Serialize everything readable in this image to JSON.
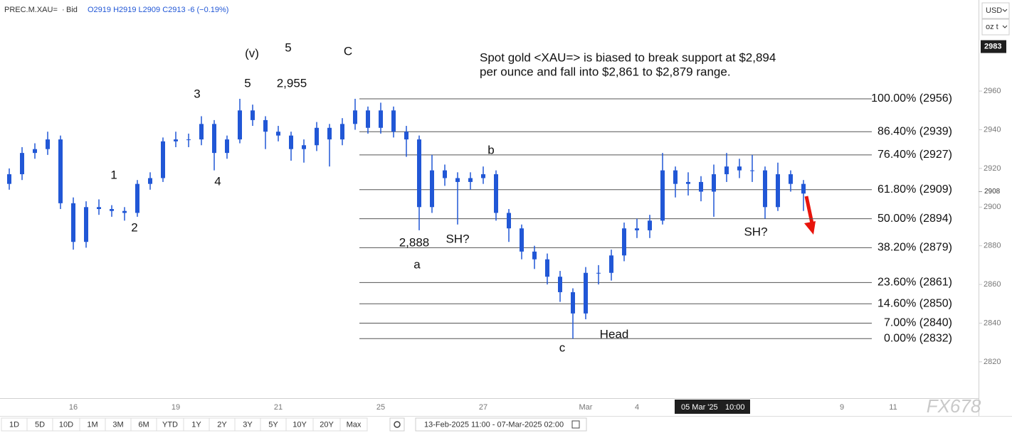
{
  "chart_data": {
    "type": "ohlc",
    "header": {
      "symbol": "PREC.M.XAU=",
      "separator": "·",
      "source": "Bid",
      "quote": "O2919 H2919 L2909 C2913 -6 (−0.19%)"
    },
    "note": [
      "Spot gold <XAU=> is biased to break support at $2,894",
      "per ounce and fall into $2,861 to $2,879 range."
    ],
    "color": "#2157d6",
    "categories": [
      null,
      null,
      null,
      null,
      null,
      "16",
      null,
      null,
      null,
      null,
      null,
      null,
      null,
      "19",
      null,
      null,
      null,
      null,
      null,
      null,
      null,
      "21",
      null,
      null,
      null,
      null,
      null,
      null,
      null,
      "25",
      null,
      null,
      null,
      null,
      null,
      null,
      null,
      "27",
      null,
      null,
      null,
      null,
      null,
      null,
      null,
      "Mar",
      null,
      null,
      null,
      "4",
      null,
      null,
      null,
      null,
      null,
      null,
      null,
      null,
      null,
      null,
      null,
      null,
      null,
      null,
      null,
      "9",
      null,
      null,
      null,
      "11",
      null,
      null,
      null,
      null,
      null,
      null
    ],
    "open": [
      2912,
      2917,
      2928,
      2930,
      2935,
      2902,
      2882,
      2900,
      2899,
      2898,
      2897,
      2912,
      2915,
      2934,
      2935,
      2935,
      2943,
      2928,
      2935,
      2950,
      2945,
      2939,
      2937,
      2930,
      2932,
      2941,
      2935,
      2943,
      2950,
      2941,
      2950,
      2939,
      2935,
      2900,
      2919,
      2915,
      2913,
      2915,
      2917,
      2897,
      2889,
      2877,
      2873,
      2864,
      2856,
      2845,
      2866,
      2866,
      2875,
      2889,
      2888,
      2893,
      2919,
      2912,
      2913,
      2908,
      2917,
      2921,
      2919,
      2919,
      2900,
      2917,
      2912,
      null,
      null,
      null,
      null,
      null,
      null,
      null,
      null,
      null,
      null,
      null,
      null,
      null
    ],
    "high": [
      2920,
      2931,
      2933,
      2939,
      2937,
      2905,
      2903,
      2904,
      2901,
      2900,
      2914,
      2918,
      2936,
      2939,
      2938,
      2947,
      2945,
      2937,
      2956,
      2953,
      2947,
      2942,
      2939,
      2935,
      2944,
      2943,
      2946,
      2956,
      2952,
      2954,
      2952,
      2942,
      2937,
      2927,
      2922,
      2918,
      2918,
      2921,
      2919,
      2899,
      2891,
      2880,
      2876,
      2867,
      2858,
      2869,
      2870,
      2878,
      2892,
      2894,
      2896,
      2928,
      2921,
      2918,
      2916,
      2922,
      2928,
      2925,
      2927,
      2921,
      2923,
      2919,
      2914,
      null,
      null,
      null,
      null,
      null,
      null,
      null,
      null,
      null,
      null,
      null,
      null,
      null
    ],
    "low": [
      2909,
      2914,
      2925,
      2927,
      2899,
      2878,
      2879,
      2896,
      2895,
      2893,
      2895,
      2909,
      2913,
      2931,
      2931,
      2932,
      2919,
      2925,
      2933,
      2942,
      2930,
      2934,
      2924,
      2923,
      2929,
      2921,
      2932,
      2940,
      2938,
      2938,
      2936,
      2926,
      2888,
      2897,
      2911,
      2891,
      2909,
      2912,
      2893,
      2882,
      2873,
      2868,
      2860,
      2851,
      2832,
      2842,
      2860,
      2862,
      2872,
      2884,
      2884,
      2891,
      2905,
      2906,
      2903,
      2895,
      2913,
      2915,
      2913,
      2894,
      2898,
      2908,
      2898,
      null,
      null,
      null,
      null,
      null,
      null,
      null,
      null,
      null,
      null,
      null,
      null,
      null
    ],
    "close": [
      2917,
      2928,
      2930,
      2935,
      2902,
      2882,
      2900,
      2899,
      2898,
      2897,
      2912,
      2915,
      2934,
      2935,
      2935,
      2943,
      2928,
      2935,
      2950,
      2945,
      2939,
      2937,
      2930,
      2932,
      2941,
      2935,
      2943,
      2950,
      2941,
      2950,
      2939,
      2935,
      2900,
      2919,
      2915,
      2913,
      2915,
      2917,
      2897,
      2889,
      2877,
      2873,
      2864,
      2856,
      2845,
      2866,
      2866,
      2875,
      2889,
      2888,
      2893,
      2919,
      2912,
      2913,
      2908,
      2917,
      2921,
      2919,
      2919,
      2900,
      2917,
      2912,
      2907,
      null,
      null,
      null,
      null,
      null,
      null,
      null,
      null,
      null,
      null,
      null,
      null,
      null
    ],
    "ylim": [
      2801.2,
      3007.1
    ],
    "yticks": [
      2820,
      2840,
      2860,
      2880,
      2900,
      2920,
      2940,
      2960
    ],
    "price_markers": [
      2983,
      2908
    ],
    "levels": [
      {
        "label": "100.00% (2956)",
        "value": 2956
      },
      {
        "label": "86.40% (2939)",
        "value": 2939
      },
      {
        "label": "76.40% (2927)",
        "value": 2927
      },
      {
        "label": "61.80% (2909)",
        "value": 2909
      },
      {
        "label": "50.00% (2894)",
        "value": 2894
      },
      {
        "label": "38.20% (2879)",
        "value": 2879
      },
      {
        "label": "23.60% (2861)",
        "value": 2861
      },
      {
        "label": "14.60% (2850)",
        "value": 2850
      },
      {
        "label": "7.00% (2840)",
        "value": 2840
      },
      {
        "label": "0.00% (2832)",
        "value": 2832
      }
    ],
    "annotations": [
      "1",
      "2",
      "3",
      "4",
      "5",
      "(v)",
      "5",
      "2,955",
      "C",
      "a",
      "b",
      "2,888",
      "SH?",
      "c",
      "Head",
      "SH?"
    ],
    "crosshair": {
      "date": "05 Mar '25",
      "time": "10:00"
    }
  },
  "currency": "USD",
  "unit": "oz t",
  "toolbar": {
    "ranges": [
      "1D",
      "5D",
      "10D",
      "1M",
      "3M",
      "6M",
      "YTD",
      "1Y",
      "2Y",
      "3Y",
      "5Y",
      "10Y",
      "20Y",
      "Max"
    ],
    "date_range": "13-Feb-2025 11:00 - 07-Mar-2025 02:00"
  },
  "watermark": "FX678"
}
